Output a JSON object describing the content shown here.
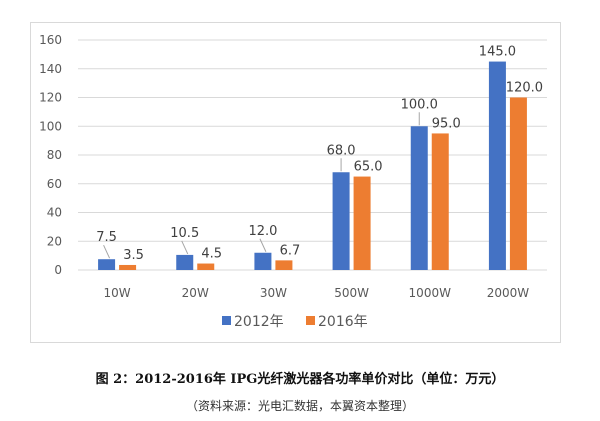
{
  "chart_data": {
    "type": "bar",
    "categories": [
      "10W",
      "20W",
      "30W",
      "500W",
      "1000W",
      "2000W"
    ],
    "series": [
      {
        "name": "2012年",
        "color": "#4472c4",
        "values": [
          7.5,
          10.5,
          12.0,
          68.0,
          100.0,
          145.0
        ],
        "labels": [
          "7.5",
          "10.5",
          "12.0",
          "68.0",
          "100.0",
          "145.0"
        ]
      },
      {
        "name": "2016年",
        "color": "#ed7d31",
        "values": [
          3.5,
          4.5,
          6.7,
          65.0,
          95.0,
          120.0
        ],
        "labels": [
          "3.5",
          "4.5",
          "6.7",
          "65.0",
          "95.0",
          "120.0"
        ]
      }
    ],
    "ylim": [
      0,
      160
    ],
    "yticks": [
      "0",
      "20",
      "40",
      "60",
      "80",
      "100",
      "120",
      "140",
      "160"
    ],
    "grid": true,
    "legend": "bottom"
  },
  "caption": {
    "title": "图 2：2012-2016年 IPG光纤激光器各功率单价对比（单位：万元）",
    "source": "（资料来源：光电汇数据，本翼资本整理）"
  }
}
